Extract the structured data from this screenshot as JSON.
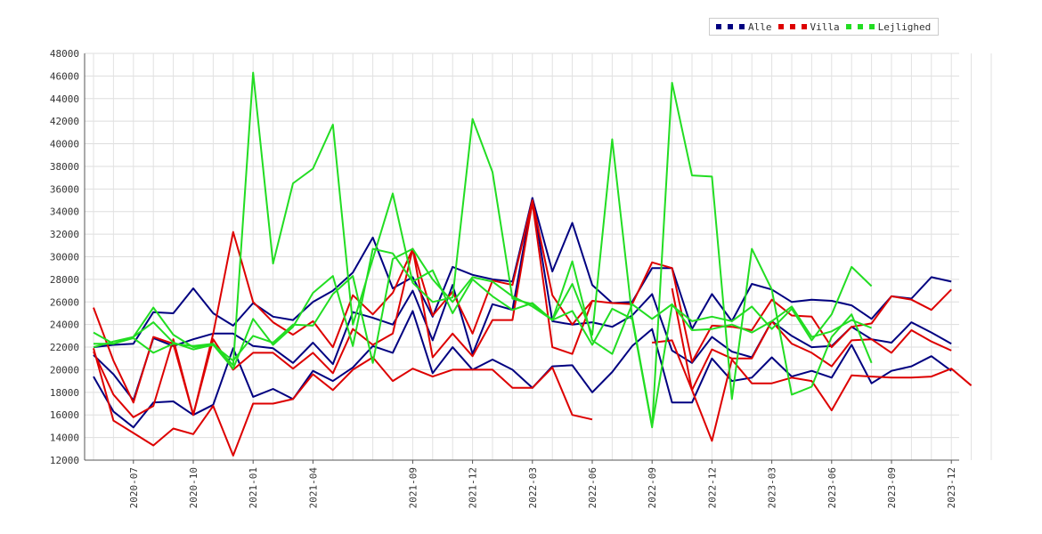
{
  "chart_data": {
    "type": "line",
    "title": "",
    "xlabel": "",
    "ylabel": "",
    "ylim": [
      12000,
      48000
    ],
    "yticks": [
      12000,
      14000,
      16000,
      18000,
      20000,
      22000,
      24000,
      26000,
      28000,
      30000,
      32000,
      34000,
      36000,
      38000,
      40000,
      42000,
      44000,
      46000,
      48000
    ],
    "x": [
      "2020-05",
      "2020-06",
      "2020-07",
      "2020-08",
      "2020-09",
      "2020-10",
      "2020-11",
      "2020-12",
      "2021-01",
      "2021-02",
      "2021-03",
      "2021-04",
      "2021-05",
      "2021-06",
      "2021-07",
      "2021-08",
      "2021-09",
      "2021-10",
      "2021-11",
      "2021-12",
      "2022-01",
      "2022-02",
      "2022-03",
      "2022-04",
      "2022-05",
      "2022-06",
      "2022-07",
      "2022-08",
      "2022-09",
      "2022-10",
      "2022-11",
      "2022-12",
      "2023-01",
      "2023-02",
      "2023-03",
      "2023-04",
      "2023-05",
      "2023-06",
      "2023-07",
      "2023-08",
      "2023-09",
      "2023-10",
      "2023-11",
      "2023-12",
      "2024-01",
      "2024-02"
    ],
    "xticks": [
      "2020-07",
      "2020-10",
      "2021-01",
      "2021-04",
      "2021-09",
      "2021-12",
      "2022-03",
      "2022-06",
      "2022-09",
      "2022-12",
      "2023-03",
      "2023-06",
      "2023-09",
      "2023-12"
    ],
    "grid": true,
    "legend_position": "top-right",
    "legend": [
      {
        "label": "Alle",
        "color": "#000080"
      },
      {
        "label": "Villa",
        "color": "#dd0000"
      },
      {
        "label": "Lejlighed",
        "color": "#22dd22"
      }
    ],
    "series": [
      {
        "name": "Alle",
        "color": "#000080",
        "values": [
          22000,
          22200,
          22300,
          25100,
          25000,
          27200,
          25000,
          23900,
          25900,
          24700,
          24400,
          26000,
          27000,
          28600,
          31700,
          27200,
          28200,
          24700,
          29100,
          28400,
          28000,
          27800,
          35200,
          28700,
          33000,
          27500,
          25900,
          26000,
          29000,
          29000,
          23600,
          26700,
          24300,
          27600,
          27100,
          26000,
          26200,
          26100,
          25700,
          24500,
          26500,
          26300,
          28200,
          27800,
          null,
          null
        ]
      },
      {
        "name": "Alle",
        "color": "#000080",
        "values": [
          21300,
          19600,
          17300,
          22800,
          22100,
          22700,
          23200,
          23200,
          22100,
          21900,
          20600,
          22400,
          20500,
          25100,
          24600,
          24000,
          27000,
          22600,
          27500,
          21400,
          25800,
          25300,
          35200,
          24300,
          24000,
          24200,
          23800,
          24800,
          26700,
          21700,
          20600,
          22900,
          21600,
          21100,
          24300,
          23000,
          22000,
          22100,
          23800,
          22700,
          22400,
          24200,
          23300,
          22300,
          null,
          null
        ]
      },
      {
        "name": "Alle",
        "color": "#000080",
        "values": [
          19400,
          16300,
          14900,
          17100,
          17200,
          16000,
          16900,
          21900,
          17600,
          18300,
          17400,
          19900,
          19000,
          20200,
          22100,
          21500,
          25200,
          19700,
          22000,
          20000,
          20900,
          20000,
          18400,
          20300,
          20400,
          18000,
          19800,
          22100,
          23600,
          17100,
          17100,
          21000,
          19000,
          19300,
          21100,
          19400,
          19900,
          19300,
          22200,
          18800,
          19900,
          20300,
          21200,
          19900,
          null,
          null
        ]
      },
      {
        "name": "Villa",
        "color": "#dd0000",
        "values": [
          25500,
          20800,
          17100,
          22900,
          22300,
          16000,
          23200,
          32200,
          26000,
          24200,
          23100,
          24300,
          22000,
          26600,
          24900,
          26800,
          30700,
          24800,
          26900,
          23200,
          27900,
          27500,
          35000,
          26600,
          24000,
          26100,
          25900,
          25800,
          29500,
          29000,
          20700,
          23900,
          23800,
          23500,
          26200,
          24800,
          24700,
          22000,
          23800,
          24100,
          26500,
          26200,
          25300,
          27100,
          null,
          null
        ]
      },
      {
        "name": "Villa",
        "color": "#dd0000",
        "values": [
          21600,
          17800,
          15800,
          16800,
          22700,
          16000,
          22700,
          20000,
          21500,
          21500,
          20100,
          21500,
          19700,
          23600,
          22200,
          23200,
          30700,
          21100,
          23200,
          21200,
          24400,
          24400,
          34800,
          22000,
          21400,
          26100,
          null,
          null,
          22400,
          22600,
          18200,
          21800,
          21000,
          21000,
          24300,
          22300,
          21500,
          20300,
          22600,
          22700,
          21500,
          23500,
          22500,
          21700,
          null,
          null
        ]
      },
      {
        "name": "Villa",
        "color": "#dd0000",
        "values": [
          21900,
          15500,
          14400,
          13300,
          14800,
          14300,
          16800,
          12400,
          17000,
          17000,
          17400,
          19600,
          18200,
          20000,
          21100,
          19000,
          20100,
          19400,
          20000,
          20000,
          20000,
          18400,
          18400,
          20200,
          16000,
          15600,
          null,
          null,
          null,
          27200,
          18200,
          13700,
          20900,
          18800,
          18800,
          19300,
          19000,
          16400,
          19500,
          19400,
          19300,
          19300,
          19400,
          20100,
          18600,
          null
        ]
      },
      {
        "name": "Lejlighed",
        "color": "#22dd22",
        "values": [
          23300,
          22300,
          22900,
          25500,
          23100,
          22000,
          22200,
          20100,
          24500,
          22200,
          23800,
          26800,
          28300,
          22100,
          30700,
          30300,
          27800,
          28800,
          25000,
          28000,
          26500,
          25300,
          25900,
          24400,
          27600,
          23100,
          40400,
          24700,
          15000,
          25700,
          24300,
          24700,
          24300,
          25600,
          23600,
          25400,
          22600,
          24900,
          29100,
          27400,
          null,
          null,
          null,
          null,
          null,
          null
        ]
      },
      {
        "name": "Lejlighed",
        "color": "#22dd22",
        "values": [
          22000,
          22500,
          22900,
          24200,
          22400,
          21800,
          22200,
          20800,
          23000,
          22400,
          24000,
          23900,
          26700,
          28300,
          20600,
          29800,
          30700,
          28000,
          26000,
          28200,
          27800,
          26500,
          25600,
          24400,
          29600,
          22600,
          21400,
          25800,
          24500,
          25800,
          23500,
          23600,
          24000,
          23300,
          24300,
          25600,
          22900,
          23400,
          24400,
          23700,
          null,
          null,
          null,
          null,
          null,
          null
        ]
      },
      {
        "name": "Lejlighed",
        "color": "#22dd22",
        "values": [
          22300,
          22300,
          22800,
          21500,
          22300,
          22100,
          22300,
          20400,
          46300,
          29400,
          36500,
          37800,
          41700,
          24000,
          29800,
          35600,
          27700,
          26000,
          26400,
          42200,
          37500,
          26300,
          25800,
          24400,
          25200,
          22200,
          25400,
          24500,
          14900,
          45400,
          37200,
          37100,
          17400,
          30700,
          27100,
          17800,
          18500,
          22900,
          24900,
          20600,
          null,
          null,
          null,
          null,
          null,
          null
        ]
      }
    ]
  }
}
